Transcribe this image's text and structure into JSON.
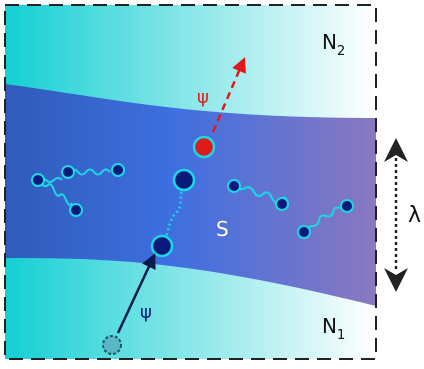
{
  "labels": {
    "top_region": "N",
    "top_region_sub": "2",
    "bottom_region": "N",
    "bottom_region_sub": "1",
    "channel": "S",
    "outgoing_particle": "ψ",
    "incoming_particle": "ψ",
    "length_scale": "λ"
  },
  "colors": {
    "lead_fill_start": "#14cfd3",
    "lead_fill_end": "#ffffff",
    "channel_left": "#2f5bb8",
    "channel_mid": "#3e6fe0",
    "channel_right": "#8a78c0",
    "particle_dark": "#0a1a7a",
    "particle_ring": "#1ed6e6",
    "particle_red": "#e01a1a",
    "arrow_red": "#e01a1a",
    "arrow_dark": "#0a1a4a",
    "dimension_arrow": "#222222",
    "border": "#222222"
  }
}
